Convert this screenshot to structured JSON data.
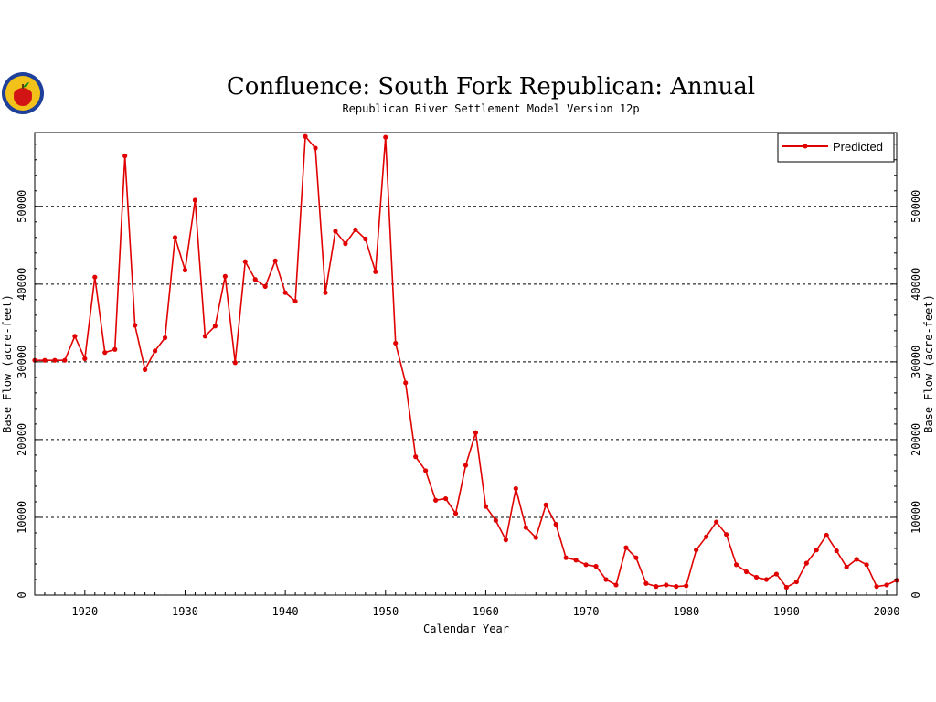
{
  "colors": {
    "series": "#e00000",
    "grid": "#000000",
    "background": "#ffffff"
  },
  "logo": {
    "icon": "apple-seal-icon"
  },
  "chart_data": {
    "type": "line",
    "title": "Confluence: South Fork Republican: Annual",
    "subtitle": "Republican River Settlement Model Version 12p",
    "xlabel": "Calendar Year",
    "ylabel": "Base Flow (acre-feet)",
    "xlim": [
      1915,
      2001
    ],
    "ylim": [
      0,
      59500
    ],
    "xticks": [
      1920,
      1930,
      1940,
      1950,
      1960,
      1970,
      1980,
      1990,
      2000
    ],
    "yticks": [
      0,
      10000,
      20000,
      30000,
      40000,
      50000
    ],
    "grid": "horizontal-dashed",
    "legend_position": "top-right",
    "series": [
      {
        "name": "Predicted",
        "x": [
          1915,
          1916,
          1917,
          1918,
          1919,
          1920,
          1921,
          1922,
          1923,
          1924,
          1925,
          1926,
          1927,
          1928,
          1929,
          1930,
          1931,
          1932,
          1933,
          1934,
          1935,
          1936,
          1937,
          1938,
          1939,
          1940,
          1941,
          1942,
          1943,
          1944,
          1945,
          1946,
          1947,
          1948,
          1949,
          1950,
          1951,
          1952,
          1953,
          1954,
          1955,
          1956,
          1957,
          1958,
          1959,
          1960,
          1961,
          1962,
          1963,
          1964,
          1965,
          1966,
          1967,
          1968,
          1969,
          1970,
          1971,
          1972,
          1973,
          1974,
          1975,
          1976,
          1977,
          1978,
          1979,
          1980,
          1981,
          1982,
          1983,
          1984,
          1985,
          1986,
          1987,
          1988,
          1989,
          1990,
          1991,
          1992,
          1993,
          1994,
          1995,
          1996,
          1997,
          1998,
          1999,
          2000,
          2001
        ],
        "values": [
          30200,
          30200,
          30200,
          30200,
          33300,
          30400,
          40900,
          31200,
          31600,
          56500,
          34700,
          29000,
          31400,
          33100,
          46000,
          41800,
          50800,
          33300,
          34600,
          41000,
          29900,
          42900,
          40600,
          39700,
          43000,
          38900,
          37800,
          59000,
          57500,
          38900,
          46800,
          45200,
          47000,
          45800,
          41600,
          58900,
          32400,
          27300,
          17800,
          16000,
          12200,
          12400,
          10500,
          16700,
          20900,
          11400,
          9600,
          7100,
          13700,
          8700,
          7400,
          11600,
          9100,
          4800,
          4500,
          3900,
          3700,
          2000,
          1300,
          6100,
          4800,
          1500,
          1100,
          1300,
          1100,
          1200,
          5800,
          7500,
          9400,
          7800,
          3900,
          3000,
          2300,
          2000,
          2700,
          1000,
          1700,
          4100,
          5800,
          7700,
          5700,
          3600,
          4600,
          3900,
          1100,
          1300,
          1900
        ]
      }
    ]
  }
}
